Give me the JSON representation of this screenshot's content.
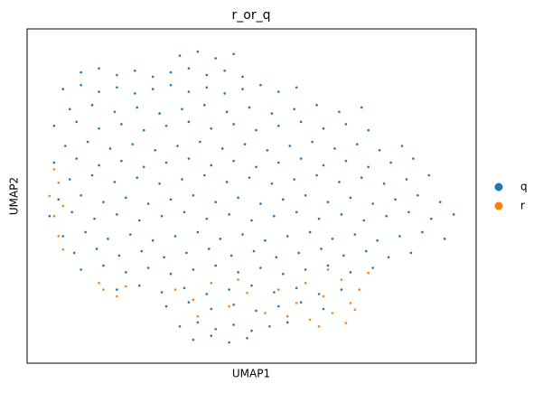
{
  "chart_data": {
    "type": "scatter",
    "title": "r_or_q",
    "x_label": "UMAP1",
    "y_label": "UMAP2",
    "xlim": [
      0,
      100
    ],
    "ylim": [
      0,
      100
    ],
    "legend": "right",
    "series": [
      {
        "name": "q",
        "color": "#1f77b4",
        "x": [
          34,
          38,
          42,
          46,
          12,
          16,
          20,
          24,
          28,
          32,
          36,
          40,
          44,
          48,
          8,
          12,
          16,
          20,
          24,
          28,
          32,
          36,
          40,
          44,
          48,
          52,
          56,
          60,
          9.5,
          14.5,
          19.5,
          24.5,
          29.5,
          34.5,
          39.5,
          44.5,
          49.5,
          54.5,
          59.5,
          64.5,
          69.5,
          74.5,
          6,
          11,
          16,
          21,
          26,
          31,
          36,
          41,
          46,
          51,
          56,
          61,
          66,
          71,
          76,
          8.5,
          13.5,
          18.5,
          23.5,
          28.5,
          33.5,
          38.5,
          43.5,
          48.5,
          53.5,
          58.5,
          63.5,
          68.5,
          73.5,
          78.5,
          83.5,
          6,
          11,
          16,
          21,
          26,
          31,
          36,
          41,
          46,
          51,
          56,
          61,
          66,
          71,
          76,
          81,
          86,
          9.5,
          14.5,
          19.5,
          24.5,
          29.5,
          34.5,
          39.5,
          44.5,
          49.5,
          54.5,
          59.5,
          64.5,
          69.5,
          74.5,
          79.5,
          84.5,
          89.5,
          7,
          12,
          17,
          22,
          27,
          32,
          37,
          42,
          47,
          52,
          57,
          62,
          67,
          72,
          77,
          82,
          87,
          92,
          5,
          10,
          15,
          20,
          25,
          30,
          35,
          40,
          45,
          50,
          55,
          60,
          65,
          70,
          75,
          80,
          85,
          90,
          95,
          8,
          13,
          18,
          23,
          28,
          33,
          38,
          43,
          48,
          53,
          58,
          63,
          68,
          73,
          78,
          83,
          88,
          93,
          10.5,
          15.5,
          20.5,
          25.5,
          30.5,
          35.5,
          40.5,
          45.5,
          50.5,
          55.5,
          60.5,
          65.5,
          70.5,
          75.5,
          80.5,
          85.5,
          12,
          17,
          22,
          27,
          32,
          37,
          42,
          47,
          52,
          57,
          62,
          67,
          72,
          77,
          20,
          25,
          30,
          35,
          40,
          45,
          50,
          55,
          60,
          65,
          70,
          31,
          36,
          41,
          46,
          51,
          56,
          61,
          66,
          34,
          38,
          42,
          46,
          50,
          54,
          58,
          37,
          41,
          45,
          49
        ],
        "y": [
          92,
          93.2,
          91.2,
          92.5,
          87,
          88.2,
          86.2,
          87.5,
          85.7,
          87,
          88.2,
          86.2,
          87.5,
          85.7,
          82,
          83.2,
          81.2,
          82.5,
          80.7,
          82,
          83.2,
          81.2,
          82.5,
          80.7,
          82,
          83.2,
          81.2,
          82.5,
          76,
          77.2,
          75.2,
          76.5,
          74.7,
          76,
          77.2,
          75.2,
          76.5,
          74.7,
          76,
          77.2,
          75.2,
          76.5,
          71,
          72.2,
          70.2,
          71.5,
          69.7,
          71,
          72.2,
          70.2,
          71.5,
          69.7,
          71,
          72.2,
          70.2,
          71.5,
          69.7,
          65,
          66.2,
          64.2,
          65.5,
          63.7,
          65,
          66.2,
          64.2,
          65.5,
          63.7,
          65,
          66.2,
          64.2,
          65.5,
          63.7,
          65,
          60,
          61.2,
          59.2,
          60.5,
          58.7,
          60,
          61.2,
          59.2,
          60.5,
          58.7,
          60,
          61.2,
          59.2,
          60.5,
          58.7,
          60,
          61.2,
          55,
          56.2,
          54.2,
          55.5,
          53.7,
          55,
          56.2,
          54.2,
          55.5,
          53.7,
          55,
          56.2,
          54.2,
          55.5,
          53.7,
          55,
          56.2,
          49,
          50.2,
          48.2,
          49.5,
          47.7,
          49,
          50.2,
          48.2,
          49.5,
          47.7,
          49,
          50.2,
          48.2,
          49.5,
          47.7,
          49,
          50.2,
          48.2,
          44,
          45.2,
          43.2,
          44.5,
          42.7,
          44,
          45.2,
          43.2,
          44.5,
          42.7,
          44,
          45.2,
          43.2,
          44.5,
          42.7,
          44,
          45.2,
          43.2,
          44.5,
          38,
          39.2,
          37.2,
          38.5,
          36.7,
          38,
          39.2,
          37.2,
          38.5,
          36.7,
          38,
          39.2,
          37.2,
          38.5,
          36.7,
          38,
          39.2,
          37.2,
          33,
          34.2,
          32.2,
          33.5,
          31.7,
          33,
          34.2,
          32.2,
          33.5,
          31.7,
          33,
          34.2,
          32.2,
          33.5,
          31.7,
          33,
          28,
          29.2,
          27.2,
          28.5,
          26.7,
          28,
          29.2,
          27.2,
          28.5,
          26.7,
          28,
          29.2,
          27.2,
          28.5,
          22,
          23.2,
          21.2,
          22.5,
          20.7,
          22,
          23.2,
          21.2,
          22.5,
          20.7,
          22,
          17,
          18.2,
          16.2,
          17.5,
          15.7,
          17,
          18.2,
          16.2,
          11,
          12.2,
          10.2,
          11.5,
          9.7,
          11,
          12.2,
          7,
          8.2,
          6.2,
          7.5
        ]
      },
      {
        "name": "r",
        "color": "#ff7f0e",
        "x": [
          6,
          7,
          5,
          8,
          6,
          7,
          8,
          17,
          20,
          22,
          16,
          33,
          37,
          41,
          45,
          49,
          53,
          38,
          47,
          56,
          60,
          63,
          66,
          68,
          70,
          72,
          74,
          76,
          62,
          65,
          58,
          71,
          67,
          73
        ],
        "y": [
          58,
          54,
          50,
          47,
          44,
          38,
          34,
          22,
          20,
          23,
          24,
          22,
          19,
          24,
          17,
          21,
          15,
          14,
          25,
          22,
          18,
          13,
          20,
          15,
          25,
          18,
          22,
          27,
          24,
          11,
          14,
          12,
          28,
          16
        ]
      }
    ]
  }
}
